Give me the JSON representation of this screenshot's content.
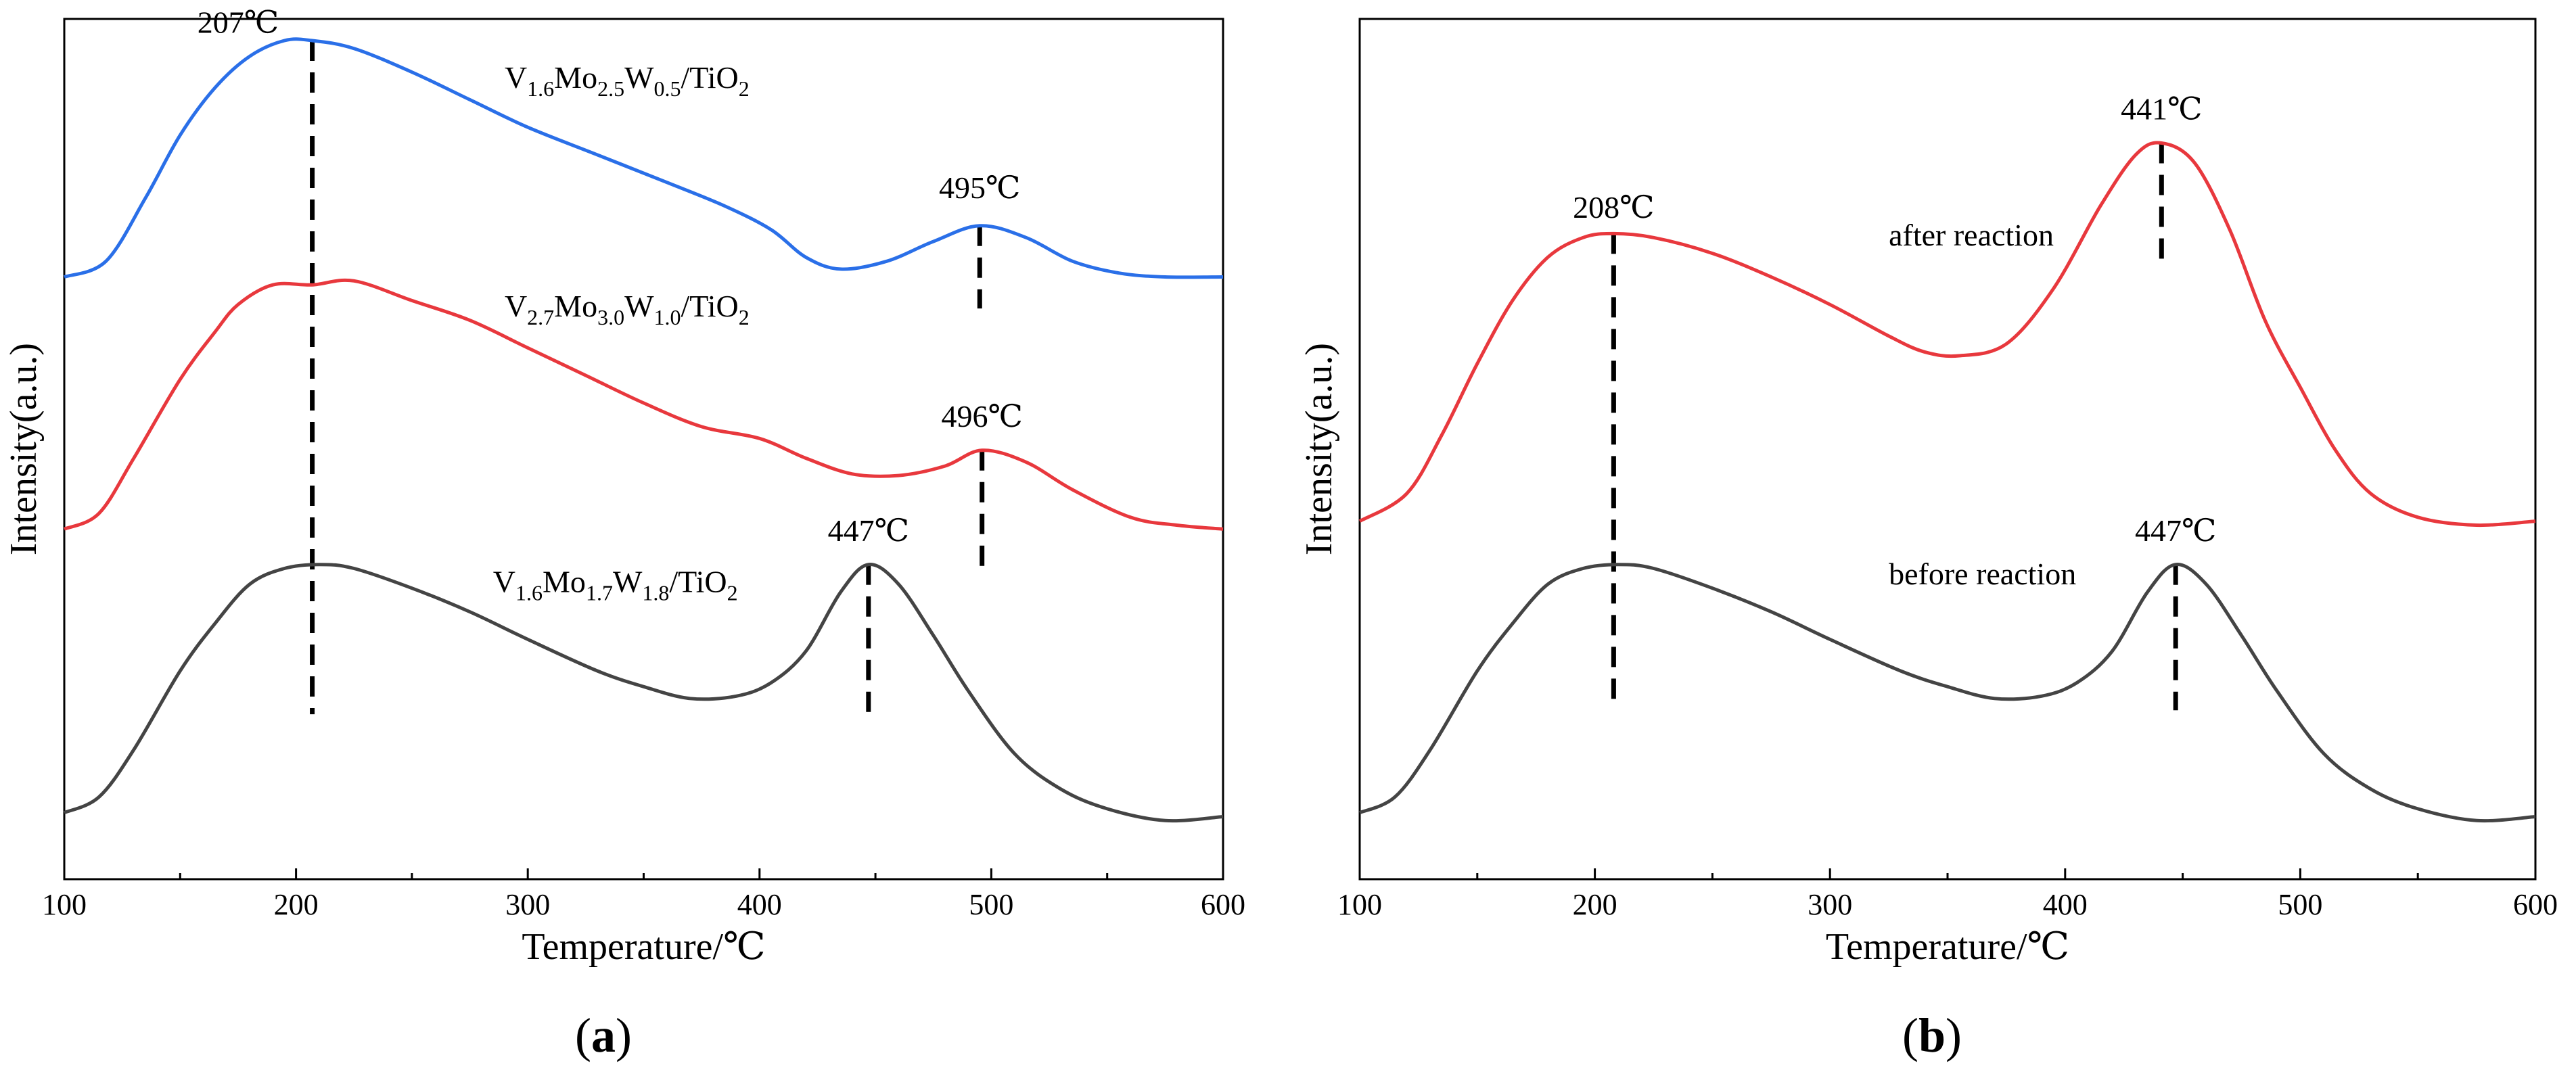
{
  "colors": {
    "blue": "#2a6fe8",
    "red": "#e8383d",
    "gray": "#444444",
    "axis": "#000000"
  },
  "chart_data": [
    {
      "panel": "(a)",
      "type": "line",
      "xlabel": "Temperature/℃",
      "ylabel": "Intensity(a.u.)",
      "xlim": [
        100,
        600
      ],
      "ylim": [
        0,
        100
      ],
      "xticks": [
        "100",
        "200",
        "300",
        "400",
        "500",
        "600"
      ],
      "series": [
        {
          "name": "V1.6Mo2.5W0.5/TiO2",
          "label": {
            "main": "V",
            "s1": "1.6",
            "m1": "Mo",
            "s2": "2.5",
            "m2": "W",
            "s3": "0.5",
            "m3": "/TiO",
            "s4": "2"
          },
          "color": "blue",
          "label_at": [
            290,
            94
          ],
          "x": [
            100,
            118,
            135,
            150,
            165,
            180,
            195,
            207,
            225,
            250,
            275,
            300,
            330,
            360,
            385,
            405,
            420,
            435,
            455,
            475,
            495,
            515,
            535,
            555,
            575,
            600
          ],
          "y": [
            70,
            72,
            80,
            88,
            94,
            98,
            100,
            100,
            99,
            96,
            92.5,
            89,
            85.5,
            82,
            79,
            76,
            72.5,
            71,
            72,
            74.5,
            76.5,
            75,
            72,
            70.5,
            70,
            70
          ]
        },
        {
          "name": "V2.7Mo3.0W1.0/TiO2",
          "label": {
            "main": "V",
            "s1": "2.7",
            "m1": "Mo",
            "s2": "3.0",
            "m2": "W",
            "s3": "1.0",
            "m3": "/TiO",
            "s4": "2"
          },
          "color": "red",
          "label_at": [
            290,
            65
          ],
          "x": [
            100,
            115,
            130,
            150,
            165,
            175,
            190,
            207,
            225,
            250,
            275,
            300,
            325,
            350,
            375,
            400,
            420,
            440,
            460,
            480,
            496,
            515,
            535,
            560,
            580,
            600
          ],
          "y": [
            38,
            40,
            47,
            57,
            63,
            66.5,
            69,
            69,
            69.5,
            67,
            64.5,
            61,
            57.5,
            54,
            51,
            49.5,
            47,
            45,
            44.8,
            46,
            48,
            46.5,
            43,
            39.5,
            38.5,
            38
          ]
        },
        {
          "name": "V1.6Mo1.7W1.8/TiO2",
          "label": {
            "main": "V",
            "s1": "1.6",
            "m1": "Mo",
            "s2": "1.7",
            "m2": "W",
            "s3": "1.8",
            "m3": "/TiO",
            "s4": "2"
          },
          "color": "gray",
          "label_at": [
            285,
            30
          ],
          "x": [
            100,
            115,
            130,
            150,
            165,
            180,
            195,
            210,
            225,
            250,
            275,
            300,
            330,
            350,
            370,
            390,
            405,
            420,
            435,
            447,
            460,
            475,
            490,
            510,
            530,
            550,
            575,
            600
          ],
          "y": [
            2,
            4,
            10,
            20,
            26,
            31,
            33,
            33.5,
            33,
            30.5,
            27.5,
            24,
            20,
            18,
            16.5,
            16.8,
            18.5,
            22.5,
            30,
            33.5,
            31,
            24.5,
            17.5,
            9.5,
            5,
            2.5,
            1,
            1.5
          ]
        }
      ],
      "annotations": [
        {
          "text": "207℃",
          "x": 207,
          "y_from": 14.5,
          "y_to": 100,
          "text_x": 175,
          "text_y": 101
        },
        {
          "text": "495℃",
          "x": 495,
          "y_from": 66,
          "y_to": 76.5,
          "text_x": 495,
          "text_y": 80
        },
        {
          "text": "496℃",
          "x": 496,
          "y_from": 32,
          "y_to": 48,
          "text_x": 496,
          "text_y": 51
        },
        {
          "text": "447℃",
          "x": 447,
          "y_from": 14.5,
          "y_to": 33.5,
          "text_x": 447,
          "text_y": 36.5
        }
      ]
    },
    {
      "panel": "(b)",
      "type": "line",
      "xlabel": "Temperature/℃",
      "ylabel": "Intensity(a.u.)",
      "xlim": [
        100,
        600
      ],
      "ylim": [
        0,
        100
      ],
      "xticks": [
        "100",
        "200",
        "300",
        "400",
        "500",
        "600"
      ],
      "series": [
        {
          "name": "after reaction",
          "color": "red",
          "label_at": [
            325,
            74
          ],
          "x": [
            100,
            120,
            135,
            150,
            165,
            180,
            195,
            208,
            225,
            250,
            275,
            300,
            325,
            340,
            355,
            375,
            395,
            415,
            430,
            441,
            455,
            470,
            485,
            500,
            515,
            530,
            550,
            575,
            600
          ],
          "y": [
            39,
            42.5,
            50,
            59,
            67,
            72.5,
            75,
            75.5,
            75,
            73,
            70,
            66.5,
            62.5,
            60.5,
            60,
            61.5,
            68.5,
            79,
            85.5,
            87,
            84.5,
            76,
            64.5,
            56,
            48,
            42.5,
            39.5,
            38.5,
            39
          ]
        },
        {
          "name": "before reaction",
          "color": "gray",
          "label_at": [
            325,
            31
          ],
          "x": [
            100,
            115,
            130,
            150,
            165,
            180,
            195,
            210,
            225,
            250,
            275,
            300,
            330,
            350,
            370,
            390,
            405,
            420,
            435,
            447,
            460,
            475,
            490,
            510,
            530,
            550,
            575,
            600
          ],
          "y": [
            2,
            4,
            10,
            20,
            26,
            31,
            33,
            33.5,
            33,
            30.5,
            27.5,
            24,
            20,
            18,
            16.5,
            16.8,
            18.5,
            22.5,
            30,
            33.5,
            31,
            24.5,
            17.5,
            9.5,
            5,
            2.5,
            1,
            1.5
          ]
        }
      ],
      "annotations": [
        {
          "text": "208℃",
          "x": 208,
          "y_from": 15,
          "y_to": 75.5,
          "text_x": 208,
          "text_y": 77.5
        },
        {
          "text": "441℃",
          "x": 441,
          "y_from": 71,
          "y_to": 87,
          "text_x": 441,
          "text_y": 90
        },
        {
          "text": "447℃",
          "x": 447,
          "y_from": 15,
          "y_to": 33.5,
          "text_x": 447,
          "text_y": 36.5
        }
      ]
    }
  ]
}
